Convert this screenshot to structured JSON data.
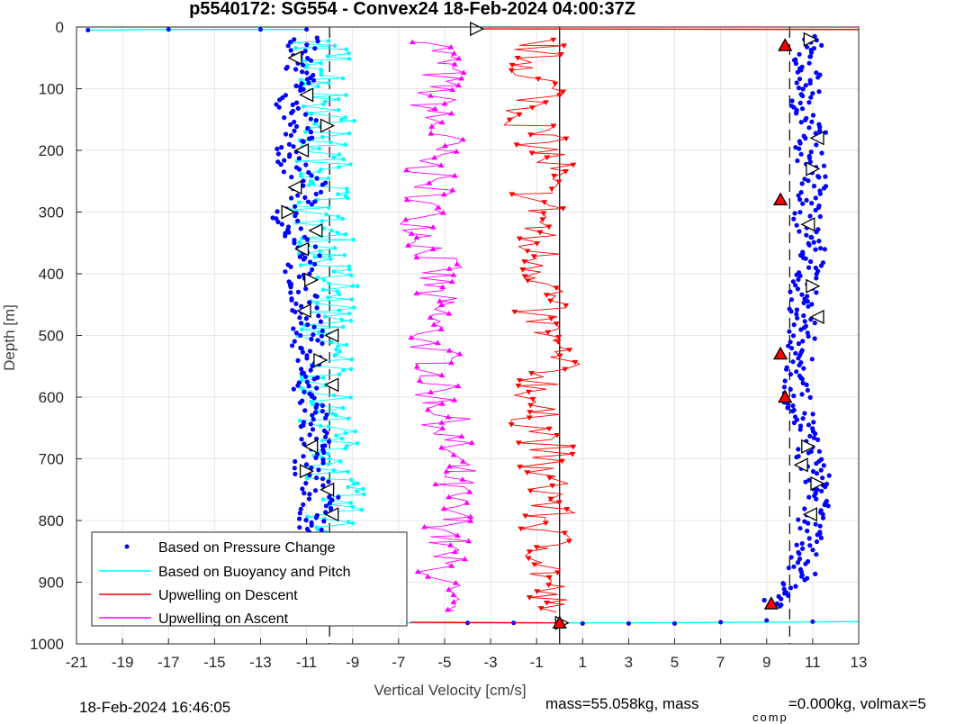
{
  "chart_data": {
    "type": "line",
    "title": "p5540172: SG554 - Convex24 18-Feb-2024 04:00:37Z",
    "xlabel": "Vertical Velocity [cm/s]",
    "ylabel": "Depth [m]",
    "xlim": [
      -21,
      13
    ],
    "ylim": [
      0,
      1000
    ],
    "y_reversed": true,
    "grid": true,
    "xticks": [
      -21,
      -19,
      -17,
      -15,
      -13,
      -11,
      -9,
      -7,
      -5,
      -3,
      -1,
      1,
      3,
      5,
      7,
      9,
      11,
      13
    ],
    "yticks": [
      0,
      100,
      200,
      300,
      400,
      500,
      600,
      700,
      800,
      900,
      1000
    ],
    "legend_position": "bottom-left",
    "reference_lines": {
      "solid_x": 0,
      "dashed_x": [
        -10,
        10
      ]
    },
    "series": [
      {
        "name": "Based on Pressure Change",
        "color": "#0000ff",
        "marker": "dot",
        "descent": {
          "x": [
            -10.9,
            -11.4,
            -11.2,
            -11.7,
            -11.0,
            -11.5,
            -11.8,
            -10.8,
            -11.3,
            -11.9,
            -11.1,
            -10.7,
            -11.6,
            -11.3,
            -10.9,
            -11.0,
            -10.8,
            -11.2,
            -10.6,
            -10.7,
            -11.0,
            -10.3,
            -10.9,
            -10.2,
            -10.5,
            -10.1
          ],
          "y": [
            15,
            50,
            90,
            120,
            160,
            185,
            220,
            250,
            280,
            310,
            345,
            370,
            400,
            430,
            460,
            500,
            540,
            580,
            620,
            670,
            720,
            760,
            800,
            850,
            900,
            955
          ]
        },
        "ascent": {
          "x": [
            10.9,
            10.6,
            10.9,
            10.4,
            11.0,
            10.8,
            11.1,
            10.9,
            10.7,
            11.0,
            10.8,
            10.5,
            10.6,
            10.4,
            10.3,
            10.6,
            10.8,
            11.3,
            11.0,
            10.7,
            10.5,
            9.2
          ],
          "y": [
            15,
            50,
            90,
            130,
            170,
            200,
            240,
            280,
            320,
            360,
            400,
            440,
            480,
            540,
            600,
            640,
            690,
            740,
            790,
            840,
            890,
            940
          ]
        }
      },
      {
        "name": "Based on Buoyancy and Pitch",
        "color": "#00ffff",
        "marker": "dot",
        "x": [
          -10.5,
          -10.0,
          -10.3,
          -9.8,
          -10.4,
          -10.2,
          -9.9,
          -10.6,
          -10.1,
          -10.3,
          -9.7,
          -10.0,
          -10.4,
          -9.9,
          -10.1,
          -10.2,
          -9.8,
          -10.0,
          -9.6,
          -9.9,
          -10.1,
          -9.8,
          -10.0
        ],
        "y": [
          20,
          60,
          100,
          140,
          180,
          220,
          260,
          300,
          340,
          380,
          420,
          460,
          500,
          540,
          580,
          620,
          680,
          720,
          760,
          800,
          850,
          900,
          950
        ]
      },
      {
        "name": "Upwelling on Descent",
        "color": "#ff0000",
        "marker": "triangle-down",
        "x": [
          -0.8,
          -1.2,
          -0.5,
          -1.4,
          -0.9,
          -0.3,
          -1.1,
          -0.6,
          -1.3,
          -0.7,
          -0.4,
          -1.0,
          -0.6,
          -0.2,
          -0.8,
          -1.2,
          -0.5,
          -0.9,
          -0.3,
          -0.7,
          -0.4,
          -0.6,
          -0.8
        ],
        "y": [
          20,
          60,
          100,
          140,
          180,
          220,
          260,
          300,
          340,
          380,
          420,
          460,
          500,
          540,
          580,
          620,
          680,
          720,
          760,
          800,
          850,
          900,
          950
        ]
      },
      {
        "name": "Upwelling on Ascent",
        "color": "#ff00ff",
        "marker": "triangle-up",
        "x": [
          -5.3,
          -5.0,
          -5.4,
          -5.6,
          -5.1,
          -5.8,
          -5.5,
          -5.9,
          -5.7,
          -5.3,
          -5.6,
          -5.4,
          -5.8,
          -5.2,
          -5.5,
          -5.0,
          -4.8,
          -4.6,
          -4.9,
          -4.7,
          -5.1,
          -5.2,
          -5.4
        ],
        "y": [
          20,
          60,
          100,
          140,
          180,
          220,
          260,
          300,
          340,
          380,
          420,
          460,
          500,
          540,
          580,
          620,
          680,
          720,
          760,
          800,
          850,
          900,
          950
        ]
      }
    ],
    "surface_spike": {
      "x": [
        -20.5,
        -17,
        -13,
        -11
      ],
      "y": [
        5,
        4,
        4,
        4
      ]
    },
    "bottom_spike": {
      "x": [
        -10,
        -4,
        3,
        13
      ],
      "y": [
        966,
        966,
        966,
        964
      ]
    },
    "descent_markers": [
      {
        "x": -3.6,
        "y": 3
      },
      {
        "x": -11.5,
        "y": 50
      },
      {
        "x": -11.0,
        "y": 110
      },
      {
        "x": -10.1,
        "y": 160
      },
      {
        "x": -11.2,
        "y": 200
      },
      {
        "x": -11.5,
        "y": 260
      },
      {
        "x": -11.8,
        "y": 300
      },
      {
        "x": -10.6,
        "y": 330
      },
      {
        "x": -11.2,
        "y": 360
      },
      {
        "x": -10.8,
        "y": 410
      },
      {
        "x": -11.1,
        "y": 460
      },
      {
        "x": -9.9,
        "y": 500
      },
      {
        "x": -10.4,
        "y": 540
      },
      {
        "x": -9.9,
        "y": 580
      },
      {
        "x": -10.8,
        "y": 680
      },
      {
        "x": -11.0,
        "y": 720
      },
      {
        "x": -10.1,
        "y": 750
      },
      {
        "x": -9.9,
        "y": 790
      },
      {
        "x": -9.5,
        "y": 860
      },
      {
        "x": -10.0,
        "y": 900
      }
    ],
    "ascent_markers": [
      {
        "x": 10.9,
        "y": 20
      },
      {
        "x": 11.2,
        "y": 180
      },
      {
        "x": 11.0,
        "y": 230
      },
      {
        "x": 10.8,
        "y": 320
      },
      {
        "x": 11.0,
        "y": 420
      },
      {
        "x": 11.2,
        "y": 470
      },
      {
        "x": 10.8,
        "y": 680
      },
      {
        "x": 10.5,
        "y": 710
      },
      {
        "x": 11.2,
        "y": 740
      },
      {
        "x": 10.9,
        "y": 790
      },
      {
        "x": 0.1,
        "y": 966
      }
    ],
    "flag_markers": [
      {
        "x": 9.8,
        "y": 30
      },
      {
        "x": 9.6,
        "y": 280
      },
      {
        "x": 9.6,
        "y": 530
      },
      {
        "x": 9.8,
        "y": 600
      },
      {
        "x": 9.2,
        "y": 935
      },
      {
        "x": -10.9,
        "y": 960
      },
      {
        "x": 0.0,
        "y": 966
      }
    ]
  },
  "footer": {
    "timestamp": "18-Feb-2024 16:46:05",
    "mass_text": "mass=55.058kg, mass",
    "comp_sub": "comp",
    "mass_comp_text": "=0.000kg, volmax=5"
  }
}
